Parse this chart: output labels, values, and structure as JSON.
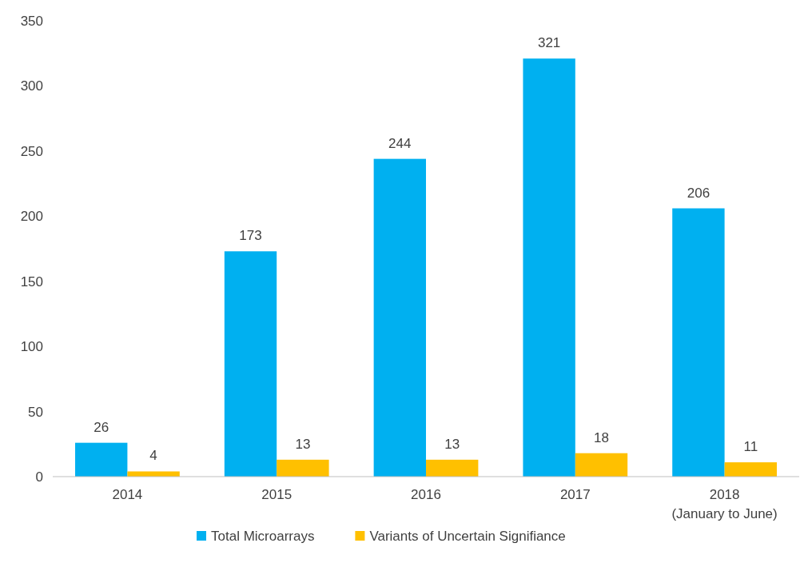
{
  "chart_data": {
    "type": "bar",
    "categories": [
      "2014",
      "2015",
      "2016",
      "2017",
      "2018\n(January to June)"
    ],
    "series": [
      {
        "name": "Total Microarrays",
        "color": "#00b0f0",
        "values": [
          26,
          173,
          244,
          321,
          206
        ]
      },
      {
        "name": "Variants of Uncertain Signifiance",
        "color": "#ffc000",
        "values": [
          4,
          13,
          13,
          18,
          11
        ]
      }
    ],
    "ylim": [
      0,
      350
    ],
    "yticks": [
      0,
      50,
      100,
      150,
      200,
      250,
      300,
      350
    ],
    "grid": false,
    "legend": "bottom",
    "data_labels": true
  }
}
